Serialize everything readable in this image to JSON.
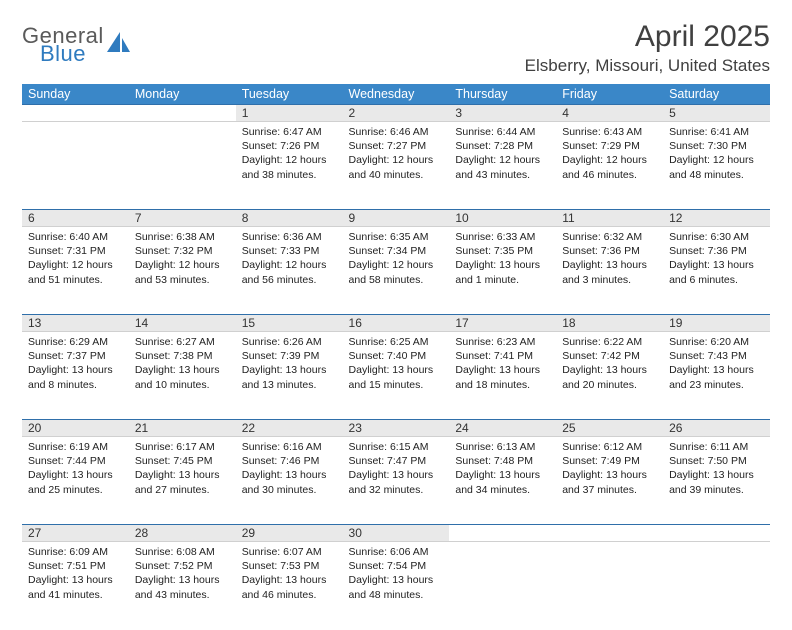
{
  "brand": {
    "line1": "General",
    "line2": "Blue",
    "shape_color": "#2f7bbf",
    "gray": "#5a5a5a"
  },
  "title": "April 2025",
  "location": "Elsberry, Missouri, United States",
  "header_bg": "#3a87c8",
  "divider_color": "#2f6faa",
  "daynum_bg": "#e9e9e9",
  "weekdays": [
    "Sunday",
    "Monday",
    "Tuesday",
    "Wednesday",
    "Thursday",
    "Friday",
    "Saturday"
  ],
  "weeks": [
    [
      null,
      null,
      {
        "n": "1",
        "sunrise": "6:47 AM",
        "sunset": "7:26 PM",
        "dl": "12 hours and 38 minutes."
      },
      {
        "n": "2",
        "sunrise": "6:46 AM",
        "sunset": "7:27 PM",
        "dl": "12 hours and 40 minutes."
      },
      {
        "n": "3",
        "sunrise": "6:44 AM",
        "sunset": "7:28 PM",
        "dl": "12 hours and 43 minutes."
      },
      {
        "n": "4",
        "sunrise": "6:43 AM",
        "sunset": "7:29 PM",
        "dl": "12 hours and 46 minutes."
      },
      {
        "n": "5",
        "sunrise": "6:41 AM",
        "sunset": "7:30 PM",
        "dl": "12 hours and 48 minutes."
      }
    ],
    [
      {
        "n": "6",
        "sunrise": "6:40 AM",
        "sunset": "7:31 PM",
        "dl": "12 hours and 51 minutes."
      },
      {
        "n": "7",
        "sunrise": "6:38 AM",
        "sunset": "7:32 PM",
        "dl": "12 hours and 53 minutes."
      },
      {
        "n": "8",
        "sunrise": "6:36 AM",
        "sunset": "7:33 PM",
        "dl": "12 hours and 56 minutes."
      },
      {
        "n": "9",
        "sunrise": "6:35 AM",
        "sunset": "7:34 PM",
        "dl": "12 hours and 58 minutes."
      },
      {
        "n": "10",
        "sunrise": "6:33 AM",
        "sunset": "7:35 PM",
        "dl": "13 hours and 1 minute."
      },
      {
        "n": "11",
        "sunrise": "6:32 AM",
        "sunset": "7:36 PM",
        "dl": "13 hours and 3 minutes."
      },
      {
        "n": "12",
        "sunrise": "6:30 AM",
        "sunset": "7:36 PM",
        "dl": "13 hours and 6 minutes."
      }
    ],
    [
      {
        "n": "13",
        "sunrise": "6:29 AM",
        "sunset": "7:37 PM",
        "dl": "13 hours and 8 minutes."
      },
      {
        "n": "14",
        "sunrise": "6:27 AM",
        "sunset": "7:38 PM",
        "dl": "13 hours and 10 minutes."
      },
      {
        "n": "15",
        "sunrise": "6:26 AM",
        "sunset": "7:39 PM",
        "dl": "13 hours and 13 minutes."
      },
      {
        "n": "16",
        "sunrise": "6:25 AM",
        "sunset": "7:40 PM",
        "dl": "13 hours and 15 minutes."
      },
      {
        "n": "17",
        "sunrise": "6:23 AM",
        "sunset": "7:41 PM",
        "dl": "13 hours and 18 minutes."
      },
      {
        "n": "18",
        "sunrise": "6:22 AM",
        "sunset": "7:42 PM",
        "dl": "13 hours and 20 minutes."
      },
      {
        "n": "19",
        "sunrise": "6:20 AM",
        "sunset": "7:43 PM",
        "dl": "13 hours and 23 minutes."
      }
    ],
    [
      {
        "n": "20",
        "sunrise": "6:19 AM",
        "sunset": "7:44 PM",
        "dl": "13 hours and 25 minutes."
      },
      {
        "n": "21",
        "sunrise": "6:17 AM",
        "sunset": "7:45 PM",
        "dl": "13 hours and 27 minutes."
      },
      {
        "n": "22",
        "sunrise": "6:16 AM",
        "sunset": "7:46 PM",
        "dl": "13 hours and 30 minutes."
      },
      {
        "n": "23",
        "sunrise": "6:15 AM",
        "sunset": "7:47 PM",
        "dl": "13 hours and 32 minutes."
      },
      {
        "n": "24",
        "sunrise": "6:13 AM",
        "sunset": "7:48 PM",
        "dl": "13 hours and 34 minutes."
      },
      {
        "n": "25",
        "sunrise": "6:12 AM",
        "sunset": "7:49 PM",
        "dl": "13 hours and 37 minutes."
      },
      {
        "n": "26",
        "sunrise": "6:11 AM",
        "sunset": "7:50 PM",
        "dl": "13 hours and 39 minutes."
      }
    ],
    [
      {
        "n": "27",
        "sunrise": "6:09 AM",
        "sunset": "7:51 PM",
        "dl": "13 hours and 41 minutes."
      },
      {
        "n": "28",
        "sunrise": "6:08 AM",
        "sunset": "7:52 PM",
        "dl": "13 hours and 43 minutes."
      },
      {
        "n": "29",
        "sunrise": "6:07 AM",
        "sunset": "7:53 PM",
        "dl": "13 hours and 46 minutes."
      },
      {
        "n": "30",
        "sunrise": "6:06 AM",
        "sunset": "7:54 PM",
        "dl": "13 hours and 48 minutes."
      },
      null,
      null,
      null
    ]
  ],
  "labels": {
    "sunrise": "Sunrise:",
    "sunset": "Sunset:",
    "daylight": "Daylight:"
  }
}
